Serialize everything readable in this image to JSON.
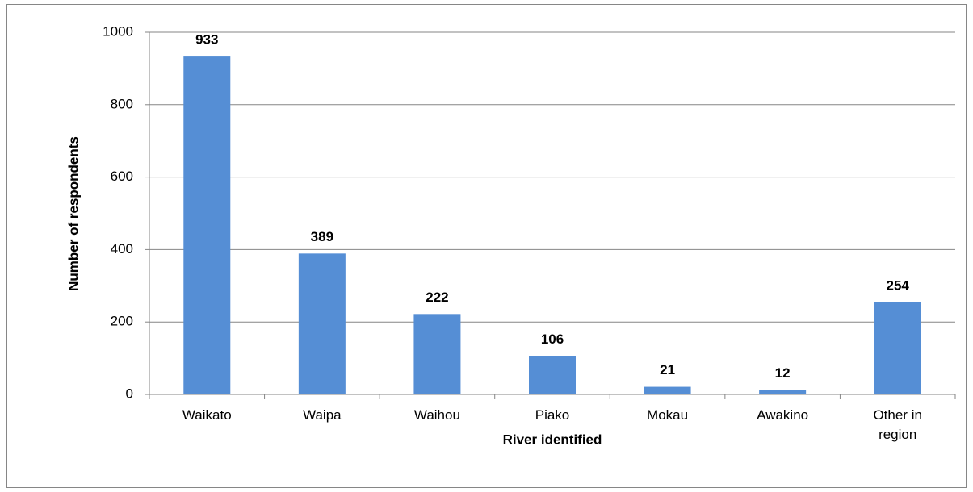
{
  "chart_data": {
    "type": "bar",
    "categories": [
      "Waikato",
      "Waipa",
      "Waihou",
      "Piako",
      "Mokau",
      "Awakino",
      "Other in region"
    ],
    "values": [
      933,
      389,
      222,
      106,
      21,
      12,
      254
    ],
    "color": "#558ed5",
    "ylim": [
      0,
      1000
    ],
    "yticks": [
      0,
      200,
      400,
      600,
      800,
      1000
    ],
    "grid": true,
    "x_label": "River identified",
    "y_label": "Number of respondents"
  }
}
